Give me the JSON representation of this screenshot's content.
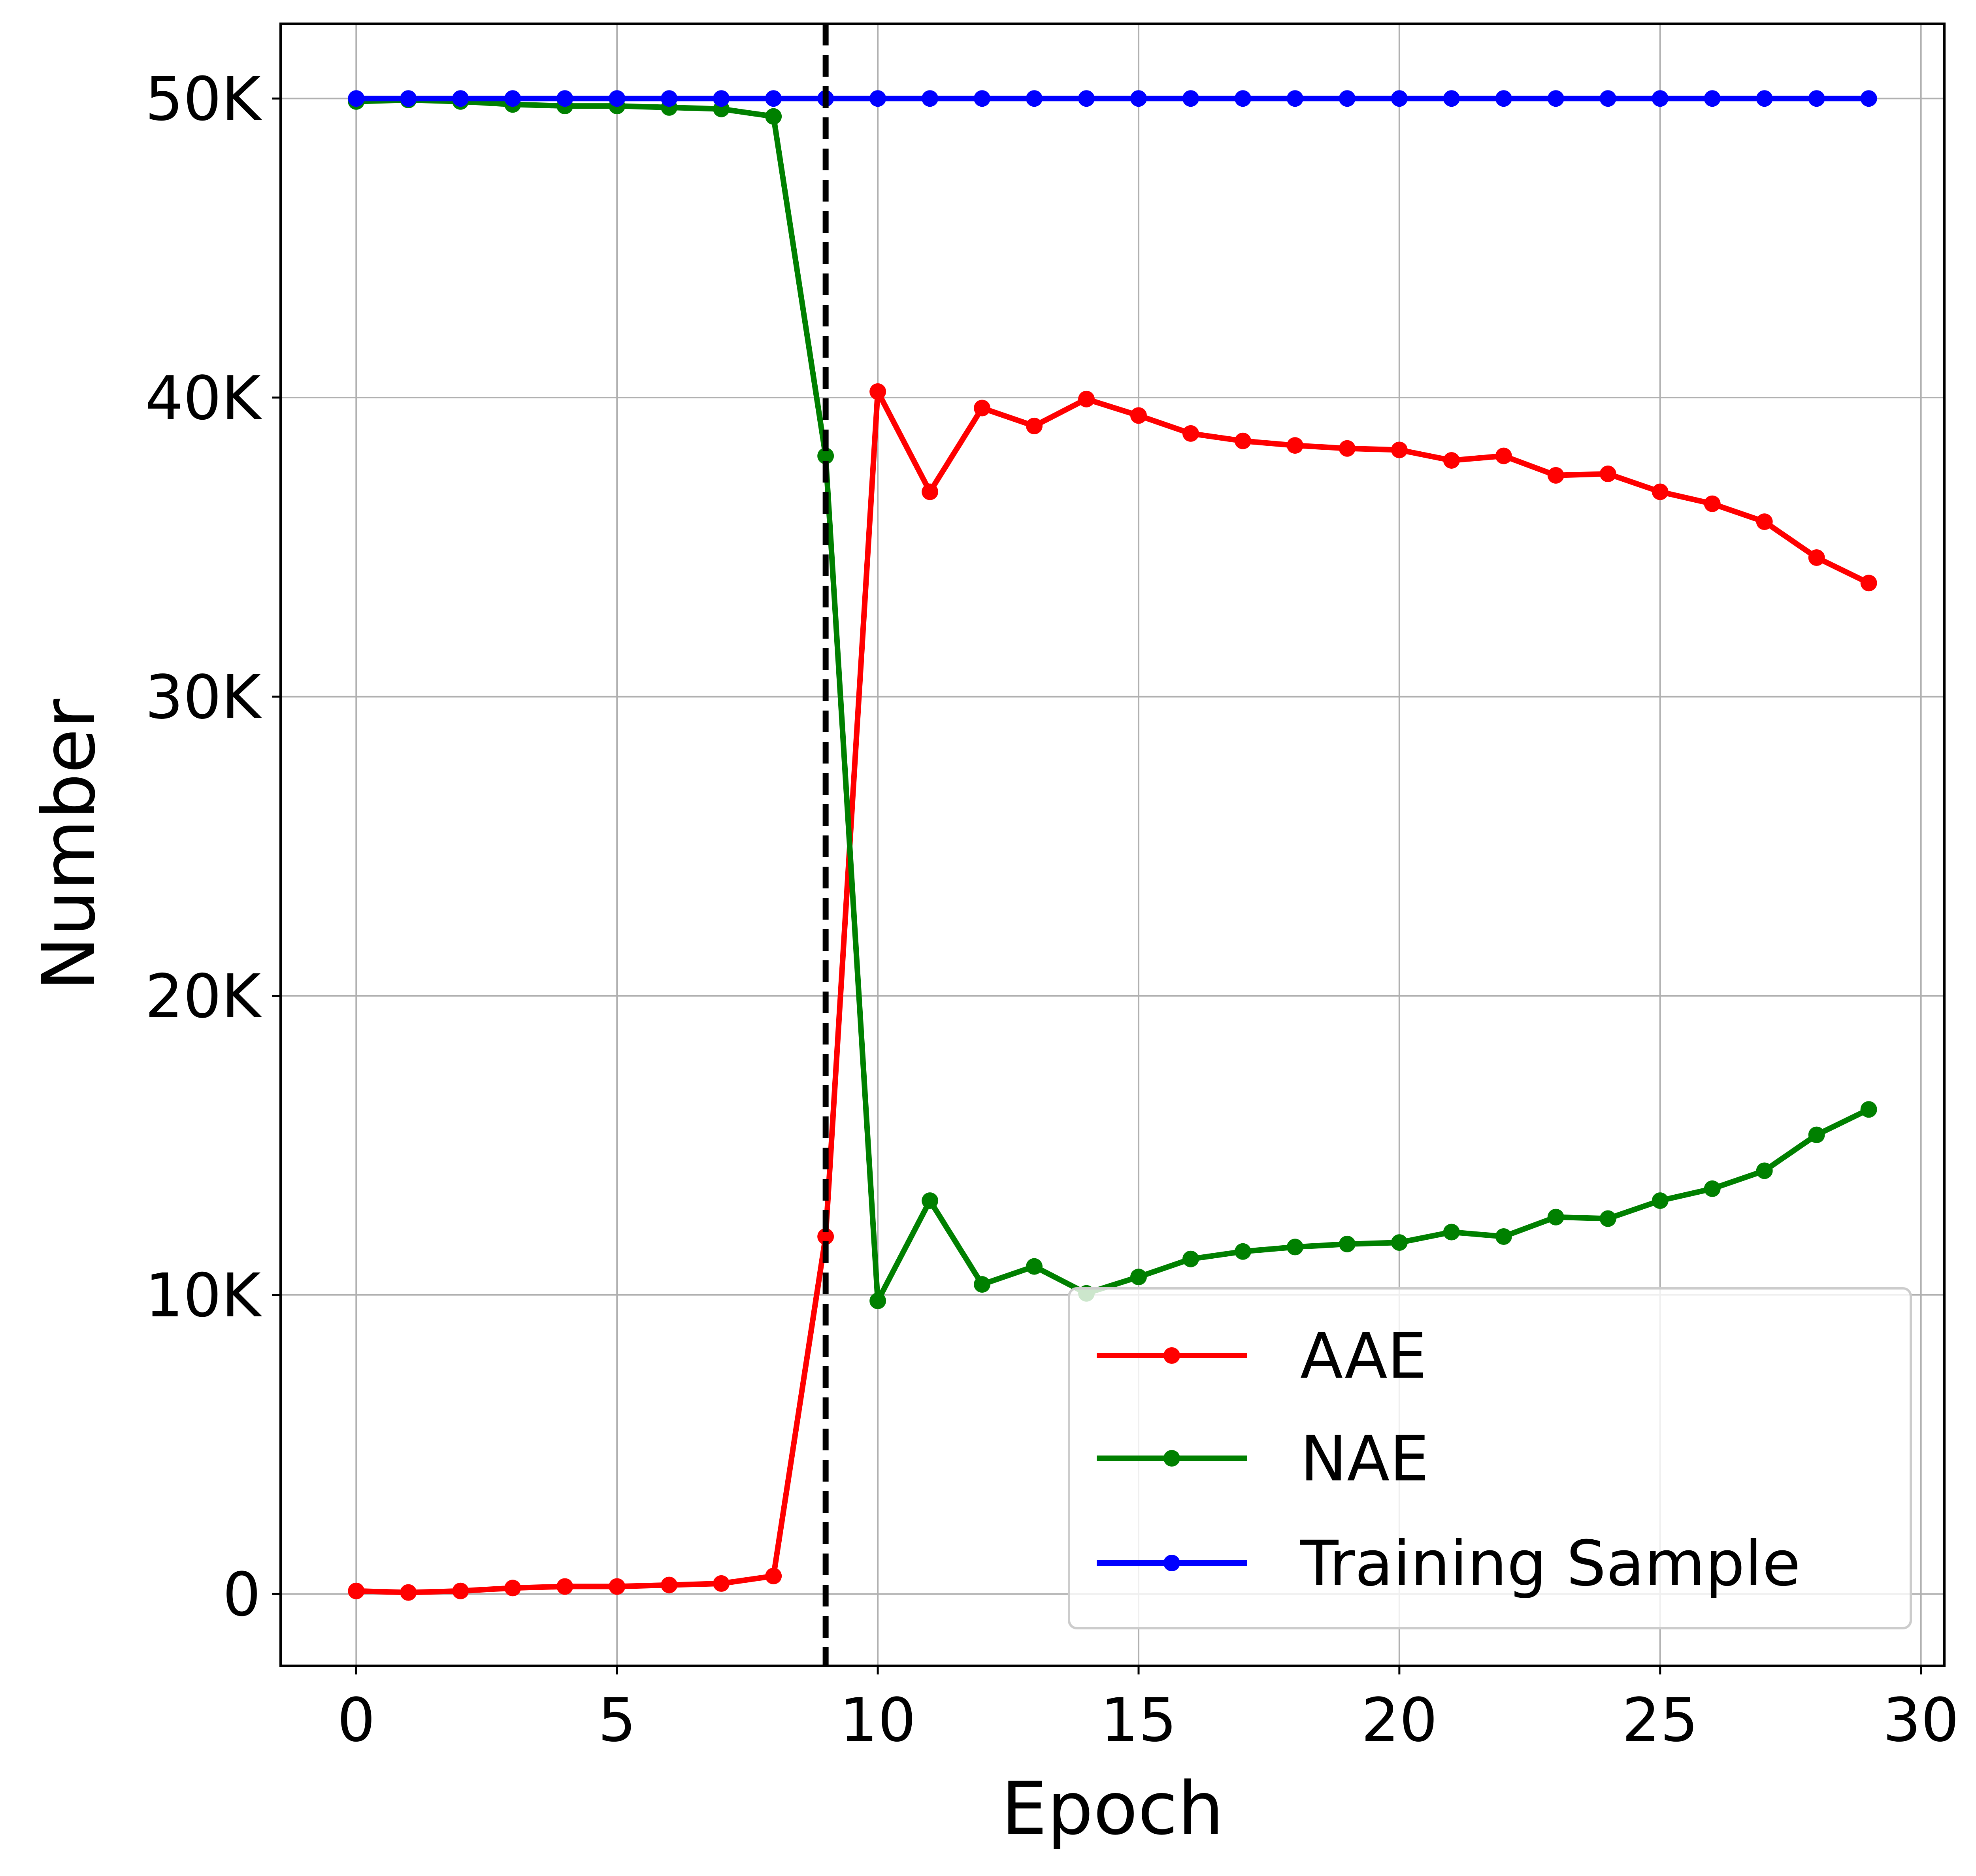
{
  "chart_data": {
    "type": "line",
    "title": "",
    "xlabel": "Epoch",
    "ylabel": "Number",
    "xlim": [
      -1.45,
      30.45
    ],
    "ylim": [
      -2400,
      52500
    ],
    "x_ticks": [
      0,
      5,
      10,
      15,
      20,
      25,
      30
    ],
    "x_tick_labels": [
      "0",
      "5",
      "10",
      "15",
      "20",
      "25",
      "30"
    ],
    "y_ticks": [
      0,
      10000,
      20000,
      30000,
      40000,
      50000
    ],
    "y_tick_labels": [
      "0",
      "10K",
      "20K",
      "30K",
      "40K",
      "50K"
    ],
    "grid": true,
    "legend_position": "lower-right",
    "vline": {
      "x": 9,
      "style": "dashed",
      "color": "#000000"
    },
    "x": [
      0,
      1,
      2,
      3,
      4,
      5,
      6,
      7,
      8,
      9,
      10,
      11,
      12,
      13,
      14,
      15,
      16,
      17,
      18,
      19,
      20,
      21,
      22,
      23,
      24,
      25,
      26,
      27,
      28,
      29
    ],
    "series": [
      {
        "name": "AAE",
        "color": "#ff0000",
        "values": [
          100,
          50,
          100,
          200,
          250,
          250,
          300,
          350,
          600,
          11950,
          40200,
          36850,
          39650,
          39050,
          39950,
          39400,
          38800,
          38550,
          38400,
          38300,
          38250,
          37900,
          38050,
          37400,
          37450,
          36850,
          36450,
          35850,
          34650,
          33800
        ]
      },
      {
        "name": "NAE",
        "color": "#008000",
        "values": [
          49900,
          49950,
          49900,
          49800,
          49750,
          49750,
          49700,
          49650,
          49400,
          38050,
          9800,
          13150,
          10350,
          10950,
          10050,
          10600,
          11200,
          11450,
          11600,
          11700,
          11750,
          12100,
          11950,
          12600,
          12550,
          13150,
          13550,
          14150,
          15350,
          16200
        ]
      },
      {
        "name": "Training Sample",
        "color": "#0000ff",
        "values": [
          50000,
          50000,
          50000,
          50000,
          50000,
          50000,
          50000,
          50000,
          50000,
          50000,
          50000,
          50000,
          50000,
          50000,
          50000,
          50000,
          50000,
          50000,
          50000,
          50000,
          50000,
          50000,
          50000,
          50000,
          50000,
          50000,
          50000,
          50000,
          50000,
          50000
        ]
      }
    ]
  }
}
